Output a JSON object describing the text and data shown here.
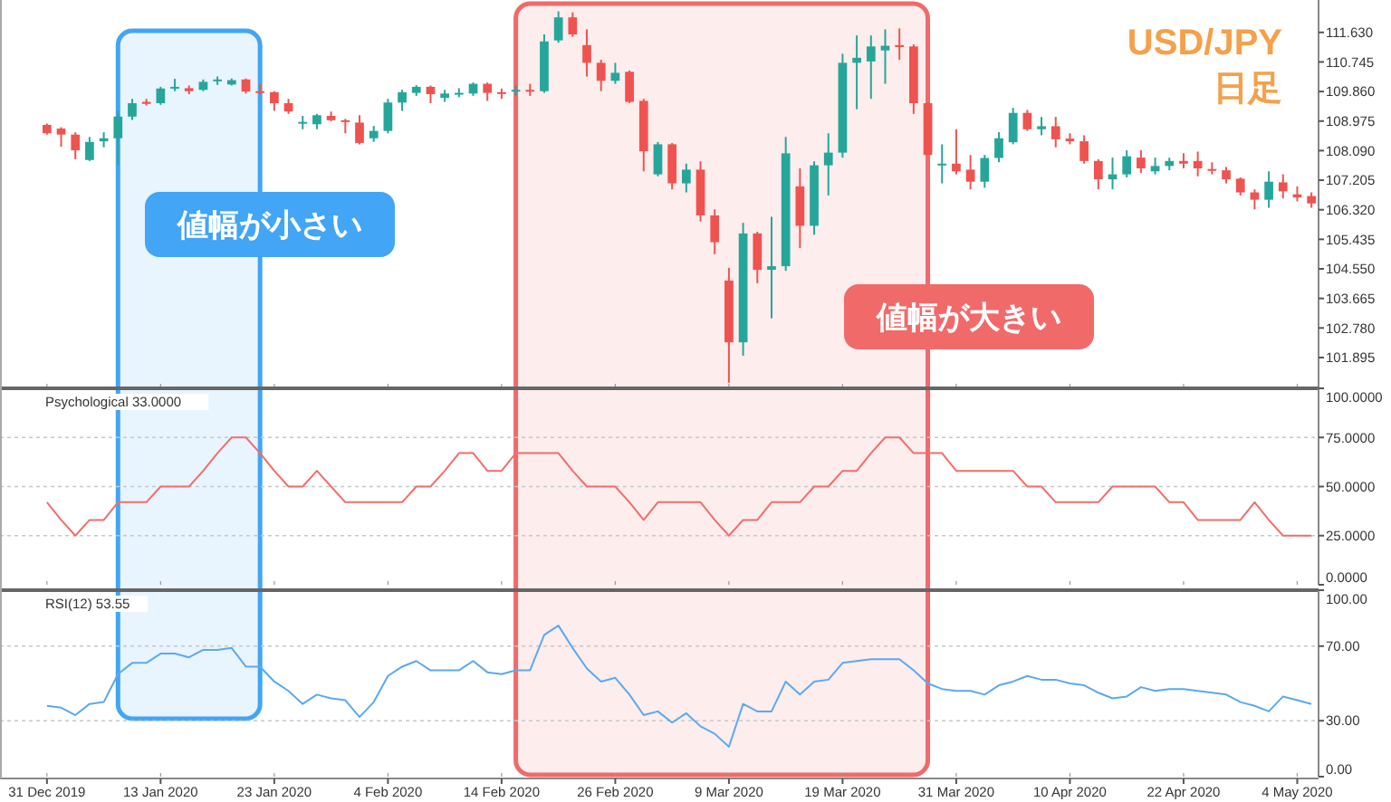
{
  "chart_data": [
    {
      "type": "candlestick",
      "title": "USD/JPY",
      "subtitle": "日足",
      "tick_labels": "y",
      "annotations": [
        "値幅が小さい",
        "値幅が大きい"
      ],
      "ylim": [
        101.0,
        112.6
      ],
      "yticks": [
        {
          "value": 111.63,
          "label": "111.630"
        },
        {
          "value": 110.745,
          "label": "110.745"
        },
        {
          "value": 109.86,
          "label": "109.860"
        },
        {
          "value": 108.975,
          "label": "108.975"
        },
        {
          "value": 108.09,
          "label": "108.090"
        },
        {
          "value": 107.205,
          "label": "107.205"
        },
        {
          "value": 106.32,
          "label": "106.320"
        },
        {
          "value": 105.435,
          "label": "105.435"
        },
        {
          "value": 104.55,
          "label": "104.550"
        },
        {
          "value": 103.665,
          "label": "103.665"
        },
        {
          "value": 102.78,
          "label": "102.780"
        },
        {
          "value": 101.895,
          "label": "101.895"
        }
      ],
      "ohlc": [
        [
          108.86,
          108.9,
          108.57,
          108.61
        ],
        [
          108.75,
          108.79,
          108.21,
          108.57
        ],
        [
          108.57,
          108.64,
          107.83,
          108.1
        ],
        [
          107.81,
          108.5,
          107.78,
          108.35
        ],
        [
          108.37,
          108.64,
          108.19,
          108.46
        ],
        [
          108.46,
          109.28,
          107.65,
          109.11
        ],
        [
          109.11,
          109.64,
          109.01,
          109.51
        ],
        [
          109.55,
          109.64,
          109.44,
          109.49
        ],
        [
          109.51,
          110.0,
          109.46,
          109.95
        ],
        [
          109.95,
          110.24,
          109.87,
          110.0
        ],
        [
          109.96,
          110.04,
          109.78,
          109.87
        ],
        [
          109.91,
          110.22,
          109.87,
          110.15
        ],
        [
          110.2,
          110.31,
          110.06,
          110.22
        ],
        [
          110.07,
          110.25,
          110.04,
          110.2
        ],
        [
          110.22,
          110.25,
          109.8,
          109.86
        ],
        [
          109.87,
          110.09,
          109.77,
          109.84
        ],
        [
          109.84,
          109.87,
          109.28,
          109.51
        ],
        [
          109.51,
          109.64,
          109.19,
          109.26
        ],
        [
          108.9,
          109.13,
          108.73,
          108.95
        ],
        [
          108.88,
          109.19,
          108.73,
          109.15
        ],
        [
          109.13,
          109.26,
          108.97,
          109.0
        ],
        [
          109.0,
          109.04,
          108.61,
          108.95
        ],
        [
          108.93,
          109.15,
          108.28,
          108.32
        ],
        [
          108.46,
          108.83,
          108.35,
          108.68
        ],
        [
          108.68,
          109.64,
          108.61,
          109.53
        ],
        [
          109.53,
          109.91,
          109.28,
          109.84
        ],
        [
          109.82,
          110.05,
          109.73,
          110.0
        ],
        [
          110.0,
          110.04,
          109.51,
          109.78
        ],
        [
          109.67,
          109.91,
          109.55,
          109.8
        ],
        [
          109.78,
          109.96,
          109.69,
          109.82
        ],
        [
          109.8,
          110.13,
          109.73,
          110.09
        ],
        [
          110.09,
          110.13,
          109.58,
          109.82
        ],
        [
          109.84,
          109.95,
          109.64,
          109.8
        ],
        [
          109.87,
          110.04,
          109.73,
          109.91
        ],
        [
          109.91,
          110.09,
          109.73,
          109.87
        ],
        [
          109.87,
          111.57,
          109.82,
          111.36
        ],
        [
          111.39,
          112.26,
          111.32,
          112.08
        ],
        [
          112.08,
          112.23,
          111.5,
          111.57
        ],
        [
          111.25,
          111.72,
          110.31,
          110.72
        ],
        [
          110.72,
          110.81,
          109.87,
          110.18
        ],
        [
          110.18,
          110.72,
          110.09,
          110.42
        ],
        [
          110.45,
          110.49,
          109.51,
          109.55
        ],
        [
          109.58,
          109.64,
          107.47,
          108.07
        ],
        [
          107.38,
          108.35,
          107.32,
          108.28
        ],
        [
          108.28,
          108.32,
          106.93,
          107.11
        ],
        [
          107.11,
          107.7,
          106.84,
          107.52
        ],
        [
          107.52,
          107.77,
          105.97,
          106.15
        ],
        [
          106.15,
          106.33,
          104.99,
          105.35
        ],
        [
          104.2,
          104.58,
          101.14,
          102.35
        ],
        [
          102.35,
          105.93,
          101.95,
          105.61
        ],
        [
          105.61,
          105.66,
          104.12,
          104.52
        ],
        [
          104.52,
          106.11,
          103.07,
          104.63
        ],
        [
          104.63,
          108.5,
          104.49,
          108.01
        ],
        [
          107.02,
          107.56,
          105.17,
          105.84
        ],
        [
          105.84,
          107.77,
          105.57,
          107.65
        ],
        [
          107.65,
          108.61,
          106.75,
          108.03
        ],
        [
          108.03,
          110.99,
          107.88,
          110.72
        ],
        [
          110.72,
          111.54,
          109.33,
          110.87
        ],
        [
          110.76,
          111.54,
          109.64,
          111.21
        ],
        [
          111.09,
          111.72,
          110.09,
          111.23
        ],
        [
          111.25,
          111.75,
          110.81,
          111.19
        ],
        [
          111.21,
          111.27,
          109.19,
          109.51
        ],
        [
          109.51,
          109.55,
          107.96,
          107.96
        ],
        [
          107.65,
          108.28,
          107.11,
          107.7
        ],
        [
          107.7,
          108.73,
          107.38,
          107.47
        ],
        [
          107.52,
          107.96,
          106.93,
          107.16
        ],
        [
          107.16,
          107.96,
          106.98,
          107.87
        ],
        [
          107.87,
          108.64,
          107.74,
          108.46
        ],
        [
          108.34,
          109.37,
          108.28,
          109.22
        ],
        [
          109.22,
          109.31,
          108.68,
          108.73
        ],
        [
          108.73,
          109.1,
          108.55,
          108.82
        ],
        [
          108.82,
          109.1,
          108.19,
          108.43
        ],
        [
          108.45,
          108.61,
          108.28,
          108.37
        ],
        [
          108.37,
          108.55,
          107.7,
          107.78
        ],
        [
          107.78,
          107.83,
          106.93,
          107.23
        ],
        [
          107.23,
          107.88,
          106.93,
          107.38
        ],
        [
          107.38,
          108.1,
          107.29,
          107.92
        ],
        [
          107.88,
          108.1,
          107.42,
          107.56
        ],
        [
          107.47,
          107.88,
          107.38,
          107.63
        ],
        [
          107.63,
          107.88,
          107.5,
          107.78
        ],
        [
          107.78,
          108.01,
          107.56,
          107.7
        ],
        [
          107.78,
          108.06,
          107.32,
          107.56
        ],
        [
          107.54,
          107.74,
          107.38,
          107.49
        ],
        [
          107.5,
          107.6,
          107.11,
          107.23
        ],
        [
          107.25,
          107.29,
          106.75,
          106.84
        ],
        [
          106.84,
          106.93,
          106.33,
          106.62
        ],
        [
          106.62,
          107.47,
          106.38,
          107.16
        ],
        [
          107.14,
          107.38,
          106.66,
          106.87
        ],
        [
          106.78,
          107.02,
          106.57,
          106.69
        ],
        [
          106.73,
          106.84,
          106.38,
          106.51
        ]
      ]
    },
    {
      "type": "line",
      "tick_labels": "y",
      "grid": "y",
      "line_style": "solid",
      "annotations": [
        "Psychological 33.0000"
      ],
      "ylim": [
        0,
        100
      ],
      "yticks": [
        {
          "value": 100,
          "label": "100.0000"
        },
        {
          "value": 75,
          "label": "75.0000"
        },
        {
          "value": 50,
          "label": "50.0000"
        },
        {
          "value": 25,
          "label": "25.0000"
        },
        {
          "value": 0,
          "label": "0.0000"
        }
      ],
      "series": [
        {
          "color": "#f26d6d",
          "values": [
            42,
            33,
            25,
            33,
            33,
            42,
            42,
            42,
            50,
            50,
            50,
            58,
            67,
            75,
            75,
            67,
            58,
            50,
            50,
            58,
            50,
            42,
            42,
            42,
            42,
            42,
            50,
            50,
            58,
            67,
            67,
            58,
            58,
            67,
            67,
            67,
            67,
            58,
            50,
            50,
            50,
            42,
            33,
            42,
            42,
            42,
            42,
            33,
            25,
            33,
            33,
            42,
            42,
            42,
            50,
            50,
            58,
            58,
            67,
            75,
            75,
            67,
            67,
            67,
            58,
            58,
            58,
            58,
            58,
            50,
            50,
            42,
            42,
            42,
            42,
            50,
            50,
            50,
            50,
            42,
            42,
            33,
            33,
            33,
            33,
            42,
            33,
            25,
            25,
            25
          ]
        }
      ]
    },
    {
      "type": "line",
      "grid": "y",
      "line_style": "solid",
      "annotations": [
        "RSI(12) 53.55"
      ],
      "categories": [
        "31 Dec 2019",
        null,
        null,
        null,
        null,
        null,
        null,
        null,
        "13 Jan 2020",
        null,
        null,
        null,
        null,
        null,
        null,
        null,
        "23 Jan 2020",
        null,
        null,
        null,
        null,
        null,
        null,
        null,
        "4 Feb 2020",
        null,
        null,
        null,
        null,
        null,
        null,
        null,
        "14 Feb 2020",
        null,
        null,
        null,
        null,
        null,
        null,
        null,
        "26 Feb 2020",
        null,
        null,
        null,
        null,
        null,
        null,
        null,
        "9 Mar 2020",
        null,
        null,
        null,
        null,
        null,
        null,
        null,
        "19 Mar 2020",
        null,
        null,
        null,
        null,
        null,
        null,
        null,
        "31 Mar 2020",
        null,
        null,
        null,
        null,
        null,
        null,
        null,
        "10 Apr 2020",
        null,
        null,
        null,
        null,
        null,
        null,
        null,
        "22 Apr 2020",
        null,
        null,
        null,
        null,
        null,
        null,
        null,
        "4 May 2020",
        null
      ],
      "ylim": [
        0,
        100
      ],
      "yticks": [
        {
          "value": 100,
          "label": "100.00"
        },
        {
          "value": 70,
          "label": "70.00"
        },
        {
          "value": 30,
          "label": "30.00"
        },
        {
          "value": 0,
          "label": "0.00"
        }
      ],
      "series": [
        {
          "color": "#5aa9f0",
          "values": [
            38,
            37,
            33,
            39,
            40,
            55,
            61,
            61,
            66,
            66,
            64,
            68,
            68,
            69,
            59,
            59,
            51,
            46,
            39,
            44,
            42,
            41,
            32,
            40,
            54,
            59,
            62,
            57,
            57,
            57,
            62,
            56,
            55,
            57,
            57,
            76,
            81,
            69,
            58,
            51,
            53,
            44,
            33,
            35,
            29,
            34,
            27,
            23,
            16,
            39,
            35,
            35,
            51,
            44,
            51,
            52,
            61,
            62,
            63,
            63,
            63,
            57,
            50,
            47,
            46,
            46,
            44,
            49,
            51,
            54,
            52,
            52,
            50,
            49,
            45,
            42,
            43,
            48,
            46,
            47,
            47,
            46,
            45,
            44,
            40,
            38,
            35,
            43,
            41,
            39
          ]
        }
      ]
    }
  ]
}
